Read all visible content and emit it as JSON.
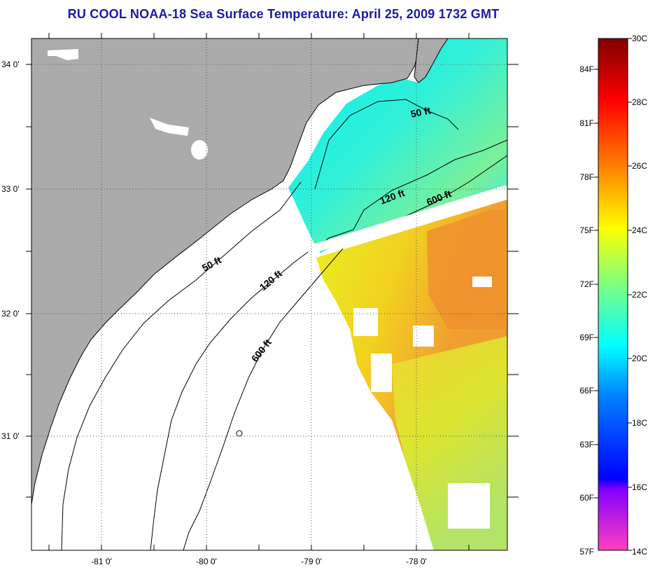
{
  "title": "RU COOL  NOAA-18  Sea Surface Temperature:  April 25, 2009 1732 GMT",
  "axes": {
    "lon_labels": [
      "-81 0'",
      "-80 0'",
      "-79 0'",
      "-78 0'"
    ],
    "lat_labels": [
      "34 0'",
      "33 0'",
      "32 0'",
      "31 0'"
    ]
  },
  "contours": {
    "north_50": "50 ft",
    "north_120": "120 ft",
    "north_600": "600 ft",
    "south_50": "50 ft",
    "south_120": "120 ft",
    "south_600": "600 ft"
  },
  "colorbar": {
    "fahrenheit": [
      "84F",
      "81F",
      "78F",
      "75F",
      "72F",
      "69F",
      "66F",
      "63F",
      "60F",
      "57F"
    ],
    "celsius": [
      "30C",
      "28C",
      "26C",
      "24C",
      "22C",
      "20C",
      "18C",
      "16C",
      "14C"
    ]
  },
  "colors": {
    "land": "#ababab",
    "title": "#1a1aa6",
    "scale_top": "#7f0000",
    "scale_red": "#ff0000",
    "scale_orange": "#ff8000",
    "scale_yellow": "#ffff00",
    "scale_green": "#80ff80",
    "scale_cyan": "#00ffff",
    "scale_blue": "#0000ff",
    "scale_violet": "#8000ff",
    "scale_pink": "#ff40c0"
  }
}
